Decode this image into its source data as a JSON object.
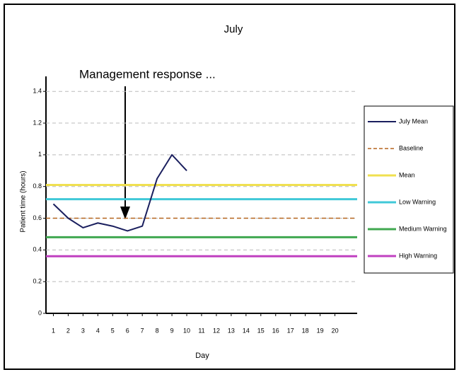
{
  "chart_data": {
    "type": "line",
    "title": "July",
    "annotation": "Management response ...",
    "xlabel": "Day",
    "ylabel": "Patient time (hours)",
    "x": [
      1,
      2,
      3,
      4,
      5,
      6,
      7,
      8,
      9,
      10,
      11,
      12,
      13,
      14,
      15,
      16,
      17,
      18,
      19,
      20
    ],
    "xlim": [
      0.5,
      21.5
    ],
    "xticks": [
      1,
      2,
      3,
      4,
      5,
      6,
      7,
      8,
      9,
      10,
      11,
      12,
      13,
      14,
      15,
      16,
      17,
      18,
      19,
      20
    ],
    "ylim": [
      0,
      1.45
    ],
    "yticks": [
      0,
      0.2,
      0.4,
      0.6,
      0.8,
      1,
      1.2,
      1.4
    ],
    "grid": true,
    "legend": "right",
    "series": [
      {
        "name": "July Mean",
        "color": "#1a1f5e",
        "values": [
          0.69,
          0.6,
          0.54,
          0.57,
          0.55,
          0.52,
          0.55,
          0.85,
          1.0,
          0.9,
          null,
          null,
          null,
          null,
          null,
          null,
          null,
          null,
          null,
          null
        ]
      }
    ],
    "reference_lines": [
      {
        "name": "Baseline",
        "color": "#b5651d",
        "dashed": true,
        "value": 0.6
      },
      {
        "name": "Mean",
        "color": "#f0e050",
        "dashed": false,
        "value": 0.81
      },
      {
        "name": "Low Warning",
        "color": "#40c8d8",
        "dashed": false,
        "value": 0.72
      },
      {
        "name": "Medium Warning",
        "color": "#40a850",
        "dashed": false,
        "value": 0.48
      },
      {
        "name": "High Warning",
        "color": "#c040c0",
        "dashed": false,
        "value": 0.36
      }
    ]
  }
}
